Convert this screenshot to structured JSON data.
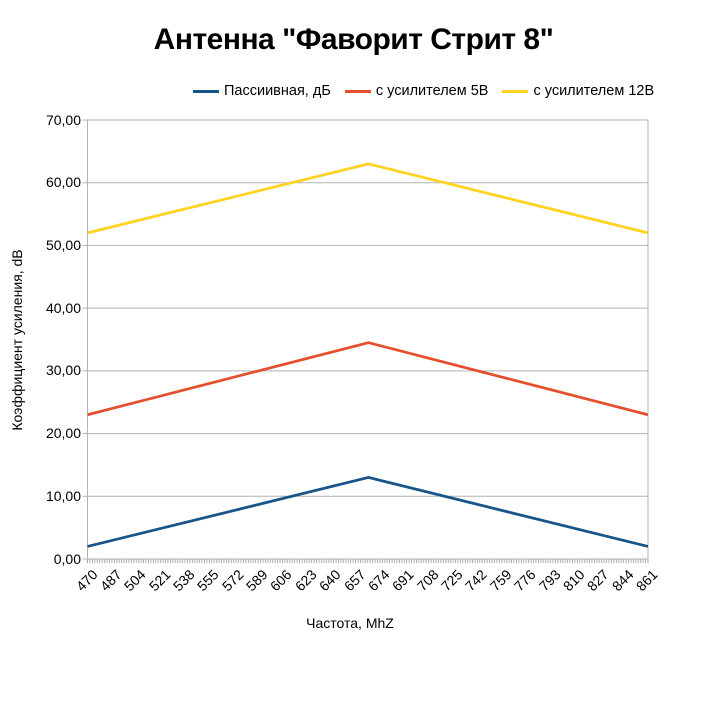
{
  "title": "Антенна \"Фаворит Стрит 8\"",
  "legend": [
    {
      "label": "Пассиивная, дБ",
      "color": "#17548a"
    },
    {
      "label": "с усилителем 5В",
      "color": "#e4502e"
    },
    {
      "label": "с усилителем 12В",
      "color": "#ffd320"
    }
  ],
  "chart_data": {
    "type": "line",
    "title": "Антенна \"Фаворит Стрит 8\"",
    "xlabel": "Частота, MhZ",
    "ylabel": "Коэффициент усиления, dB",
    "x": [
      470,
      666,
      861
    ],
    "series": [
      {
        "name": "Пассиивная, дБ",
        "color": "#17548a",
        "values": [
          2,
          13,
          2
        ]
      },
      {
        "name": "с усилителем 5В",
        "color": "#e4502e",
        "values": [
          23,
          34.5,
          23
        ]
      },
      {
        "name": "с усилителем 12В",
        "color": "#ffd320",
        "values": [
          52,
          63,
          52
        ]
      }
    ],
    "xlim": [
      470,
      861
    ],
    "ylim": [
      0,
      70
    ],
    "y_tick_interval": 10,
    "y_tick_labels": [
      "0,00",
      "10,00",
      "20,00",
      "30,00",
      "40,00",
      "50,00",
      "60,00",
      "70,00"
    ],
    "x_tick_labels": [
      "470",
      "487",
      "504",
      "521",
      "538",
      "555",
      "572",
      "589",
      "606",
      "623",
      "640",
      "657",
      "674",
      "691",
      "708",
      "725",
      "742",
      "759",
      "776",
      "793",
      "810",
      "827",
      "844",
      "861"
    ],
    "grid": "horizontal",
    "legend_position": "top"
  },
  "colors": {
    "grid": "#b3b3b3",
    "axis": "#b3b3b3",
    "minor_tick": "#a6a6a6",
    "background": "#ffffff",
    "text": "#000000"
  }
}
